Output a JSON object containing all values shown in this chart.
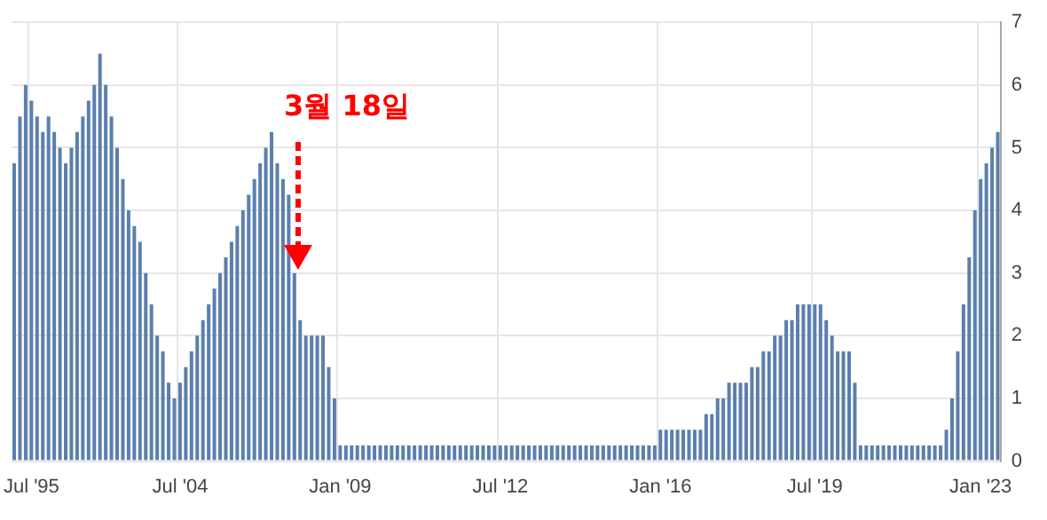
{
  "chart_data": {
    "type": "bar",
    "categories": [
      null,
      null,
      null,
      "Jul '95",
      null,
      null,
      null,
      null,
      null,
      null,
      null,
      null,
      null,
      null,
      null,
      null,
      null,
      null,
      null,
      null,
      null,
      null,
      null,
      null,
      null,
      null,
      null,
      null,
      null,
      "Jul '04",
      null,
      null,
      null,
      null,
      null,
      null,
      null,
      null,
      null,
      null,
      null,
      null,
      null,
      null,
      null,
      null,
      null,
      null,
      null,
      null,
      null,
      null,
      null,
      null,
      null,
      null,
      null,
      "Jan '09",
      null,
      null,
      null,
      null,
      null,
      null,
      null,
      null,
      null,
      null,
      null,
      null,
      null,
      null,
      null,
      null,
      null,
      null,
      null,
      null,
      null,
      null,
      null,
      null,
      null,
      null,
      null,
      "Jul '12",
      null,
      null,
      null,
      null,
      null,
      null,
      null,
      null,
      null,
      null,
      null,
      null,
      null,
      null,
      null,
      null,
      null,
      null,
      null,
      null,
      null,
      null,
      null,
      null,
      null,
      null,
      null,
      "Jan '16",
      null,
      null,
      null,
      null,
      null,
      null,
      null,
      null,
      null,
      null,
      null,
      null,
      null,
      null,
      null,
      null,
      null,
      null,
      null,
      null,
      null,
      null,
      null,
      null,
      null,
      null,
      "Jul '19",
      null,
      null,
      null,
      null,
      null,
      null,
      null,
      null,
      null,
      null,
      null,
      null,
      null,
      null,
      null,
      null,
      null,
      null,
      null,
      null,
      null,
      null,
      null,
      null,
      null,
      null,
      null,
      null,
      "Jan '23",
      null,
      null,
      null
    ],
    "values": [
      4.75,
      5.5,
      6.0,
      5.75,
      5.5,
      5.25,
      5.5,
      5.25,
      5.0,
      4.75,
      5.0,
      5.25,
      5.5,
      5.75,
      6.0,
      6.5,
      6.0,
      5.5,
      5.0,
      4.5,
      4.0,
      3.75,
      3.5,
      3.0,
      2.5,
      2.0,
      1.75,
      1.25,
      1.0,
      1.25,
      1.5,
      1.75,
      2.0,
      2.25,
      2.5,
      2.75,
      3.0,
      3.25,
      3.5,
      3.75,
      4.0,
      4.25,
      4.5,
      4.75,
      5.0,
      5.25,
      4.75,
      4.5,
      4.25,
      3.0,
      2.25,
      2.0,
      2.0,
      2.0,
      2.0,
      1.5,
      1.0,
      0.25,
      0.25,
      0.25,
      0.25,
      0.25,
      0.25,
      0.25,
      0.25,
      0.25,
      0.25,
      0.25,
      0.25,
      0.25,
      0.25,
      0.25,
      0.25,
      0.25,
      0.25,
      0.25,
      0.25,
      0.25,
      0.25,
      0.25,
      0.25,
      0.25,
      0.25,
      0.25,
      0.25,
      0.25,
      0.25,
      0.25,
      0.25,
      0.25,
      0.25,
      0.25,
      0.25,
      0.25,
      0.25,
      0.25,
      0.25,
      0.25,
      0.25,
      0.25,
      0.25,
      0.25,
      0.25,
      0.25,
      0.25,
      0.25,
      0.25,
      0.25,
      0.25,
      0.25,
      0.25,
      0.25,
      0.25,
      0.5,
      0.5,
      0.5,
      0.5,
      0.5,
      0.5,
      0.5,
      0.5,
      0.75,
      0.75,
      1.0,
      1.0,
      1.25,
      1.25,
      1.25,
      1.25,
      1.5,
      1.5,
      1.75,
      1.75,
      2.0,
      2.0,
      2.25,
      2.25,
      2.5,
      2.5,
      2.5,
      2.5,
      2.5,
      2.25,
      2.0,
      1.75,
      1.75,
      1.75,
      1.25,
      0.25,
      0.25,
      0.25,
      0.25,
      0.25,
      0.25,
      0.25,
      0.25,
      0.25,
      0.25,
      0.25,
      0.25,
      0.25,
      0.25,
      0.25,
      0.5,
      1.0,
      1.75,
      2.5,
      3.25,
      4.0,
      4.5,
      4.75,
      5.0,
      5.25
    ],
    "color": "#5b7fad",
    "ylim": [
      0,
      7
    ],
    "yticks": [
      0,
      1,
      2,
      3,
      4,
      5,
      6,
      7
    ],
    "grid": true,
    "annotations": [
      "3월 18일"
    ]
  }
}
